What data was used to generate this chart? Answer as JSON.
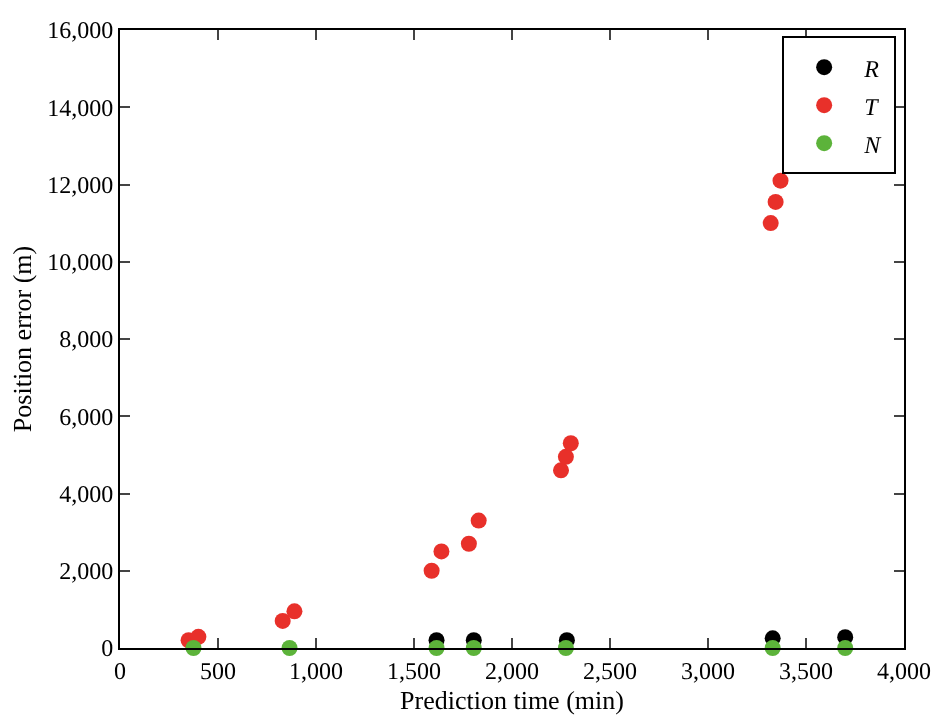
{
  "chart_data": {
    "type": "scatter",
    "xlabel": "Prediction time (min)",
    "ylabel": "Position error (m)",
    "xlim": [
      0,
      4000
    ],
    "ylim": [
      0,
      16000
    ],
    "xticks": [
      0,
      {
        "value": 500,
        "label": "500"
      },
      {
        "value": 1000,
        "label": "1,000"
      },
      {
        "value": 1500,
        "label": "1,500"
      },
      {
        "value": 2000,
        "label": "2,000"
      },
      {
        "value": 2500,
        "label": "2,500"
      },
      {
        "value": 3000,
        "label": "3,000"
      },
      {
        "value": 3500,
        "label": "3,500"
      },
      {
        "value": 4000,
        "label": "4,000"
      }
    ],
    "yticks": [
      0,
      {
        "value": 2000,
        "label": "2,000"
      },
      {
        "value": 4000,
        "label": "4,000"
      },
      {
        "value": 6000,
        "label": "6,000"
      },
      {
        "value": 8000,
        "label": "8,000"
      },
      {
        "value": 10000,
        "label": "10,000"
      },
      {
        "value": 12000,
        "label": "12,000"
      },
      {
        "value": 14000,
        "label": "14,000"
      },
      {
        "value": 16000,
        "label": "16,000"
      }
    ],
    "legend": "top right",
    "marker": "circle",
    "series": [
      {
        "name": "R",
        "color": "#000000",
        "x": [
          1615,
          1805,
          2280,
          3330,
          3700
        ],
        "values": [
          200,
          200,
          200,
          250,
          280
        ]
      },
      {
        "name": "T",
        "color": "#e8302a",
        "x": [
          350,
          400,
          830,
          890,
          1590,
          1640,
          1780,
          1830,
          2250,
          2275,
          2300,
          3320,
          3345,
          3370
        ],
        "values": [
          200,
          290,
          700,
          950,
          2000,
          2500,
          2700,
          3300,
          4600,
          4950,
          5300,
          11000,
          11550,
          12100
        ]
      },
      {
        "name": "N",
        "color": "#5cb33a",
        "x": [
          375,
          865,
          1615,
          1805,
          2275,
          3330,
          3700
        ],
        "values": [
          0,
          0,
          0,
          0,
          0,
          0,
          0
        ]
      }
    ]
  }
}
